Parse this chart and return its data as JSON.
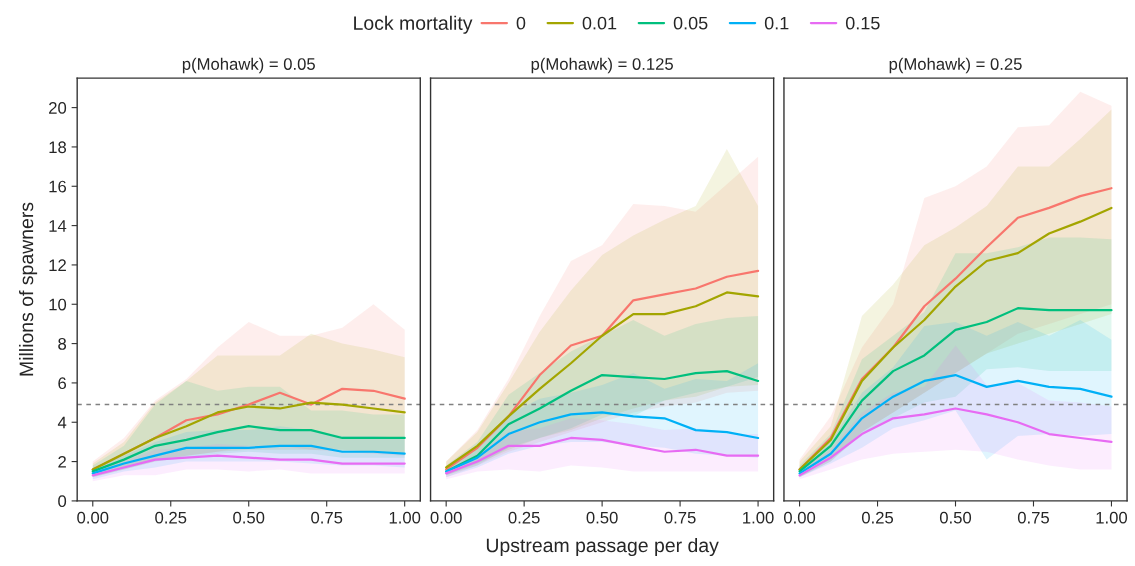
{
  "chart_data": [
    {
      "type": "line",
      "title": "p(Mohawk) = 0.05",
      "ylabel": "Millions of spawners",
      "legend_title": "Lock mortality",
      "legend": "top",
      "x": [
        0,
        0.1,
        0.2,
        0.3,
        0.4,
        0.5,
        0.6,
        0.7,
        0.8,
        0.9,
        1.0
      ],
      "xlim": [
        -0.05,
        1.05
      ],
      "xticks": [
        {
          "value": 0,
          "label": "0.00"
        },
        {
          "value": 0.25,
          "label": "0.25"
        },
        {
          "value": 0.5,
          "label": "0.50"
        },
        {
          "value": 0.75,
          "label": "0.75"
        },
        {
          "value": 1.0,
          "label": "1.00"
        }
      ],
      "ylim": [
        0,
        21.5
      ],
      "yticks": [
        0,
        2,
        4,
        6,
        8,
        10,
        12,
        14,
        16,
        18,
        20
      ],
      "grid": false,
      "ref_lines": [
        {
          "axis": "y",
          "value": 4.9,
          "color": "#808080",
          "line_style": "dashed"
        }
      ],
      "series": [
        {
          "name": "0",
          "color": "#F8766D",
          "values": [
            1.6,
            2.4,
            3.2,
            4.1,
            4.4,
            4.9,
            5.5,
            4.9,
            5.7,
            5.6,
            5.2
          ],
          "lower": [
            1.2,
            1.6,
            2.0,
            2.3,
            2.5,
            2.8,
            2.8,
            2.6,
            2.5,
            2.4,
            2.3
          ],
          "upper": [
            2.0,
            3.2,
            5.1,
            6.2,
            7.8,
            9.1,
            8.4,
            8.4,
            8.8,
            10.0,
            8.7
          ]
        },
        {
          "name": "0.01",
          "color": "#A3A500",
          "values": [
            1.6,
            2.4,
            3.2,
            3.8,
            4.5,
            4.8,
            4.7,
            5.0,
            4.9,
            4.7,
            4.5
          ],
          "lower": [
            1.3,
            1.7,
            2.1,
            2.3,
            2.5,
            2.6,
            2.6,
            2.6,
            2.6,
            2.5,
            2.4
          ],
          "upper": [
            1.9,
            3.0,
            5.0,
            6.1,
            7.4,
            7.4,
            7.4,
            8.5,
            8.0,
            7.7,
            7.3
          ]
        },
        {
          "name": "0.05",
          "color": "#00BF7D",
          "values": [
            1.5,
            2.1,
            2.8,
            3.1,
            3.5,
            3.8,
            3.6,
            3.6,
            3.2,
            3.2,
            3.2
          ],
          "lower": [
            1.2,
            1.6,
            2.0,
            2.2,
            2.4,
            2.5,
            2.4,
            2.4,
            2.2,
            2.2,
            2.2
          ],
          "upper": [
            1.8,
            2.8,
            4.9,
            6.1,
            5.6,
            5.8,
            5.8,
            4.6,
            4.6,
            4.4,
            4.4
          ]
        },
        {
          "name": "0.1",
          "color": "#00B0F6",
          "values": [
            1.4,
            1.9,
            2.3,
            2.7,
            2.7,
            2.7,
            2.8,
            2.8,
            2.5,
            2.5,
            2.4
          ],
          "lower": [
            1.1,
            1.5,
            1.7,
            2.0,
            2.0,
            2.0,
            2.0,
            1.9,
            1.8,
            1.8,
            1.7
          ],
          "upper": [
            1.7,
            2.3,
            3.0,
            3.5,
            3.6,
            3.6,
            3.8,
            3.6,
            3.3,
            3.3,
            3.2
          ]
        },
        {
          "name": "0.15",
          "color": "#E76BF3",
          "values": [
            1.3,
            1.7,
            2.1,
            2.2,
            2.3,
            2.2,
            2.1,
            2.1,
            1.9,
            1.9,
            1.9
          ],
          "lower": [
            1.0,
            1.3,
            1.3,
            1.6,
            1.6,
            1.5,
            1.6,
            1.4,
            1.4,
            1.4,
            1.4
          ],
          "upper": [
            1.5,
            2.0,
            2.6,
            2.7,
            2.9,
            2.8,
            2.8,
            2.7,
            2.5,
            2.5,
            2.4
          ]
        }
      ]
    },
    {
      "type": "line",
      "title": "p(Mohawk) = 0.125",
      "xlabel": "Upstream passage per day",
      "tick_labels": "x",
      "x": [
        0,
        0.1,
        0.2,
        0.3,
        0.4,
        0.5,
        0.6,
        0.7,
        0.8,
        0.9,
        1.0
      ],
      "xlim": [
        -0.05,
        1.05
      ],
      "xticks": [
        {
          "value": 0,
          "label": "0.00"
        },
        {
          "value": 0.25,
          "label": "0.25"
        },
        {
          "value": 0.5,
          "label": "0.50"
        },
        {
          "value": 0.75,
          "label": "0.75"
        },
        {
          "value": 1.0,
          "label": "1.00"
        }
      ],
      "ylim": [
        0,
        21.5
      ],
      "grid": false,
      "ref_lines": [
        {
          "axis": "y",
          "value": 4.9,
          "color": "#808080",
          "line_style": "dashed"
        }
      ],
      "series": [
        {
          "color": "#F8766D",
          "values": [
            1.6,
            2.7,
            4.3,
            6.4,
            7.9,
            8.4,
            10.2,
            10.5,
            10.8,
            11.4,
            11.7
          ],
          "lower": [
            1.2,
            1.8,
            2.5,
            3.0,
            3.5,
            4.0,
            4.5,
            4.8,
            5.0,
            5.5,
            5.6
          ],
          "upper": [
            2.0,
            3.6,
            6.2,
            9.4,
            12.2,
            13.0,
            15.1,
            15.0,
            14.7,
            16.1,
            17.5
          ]
        },
        {
          "color": "#A3A500",
          "values": [
            1.7,
            2.8,
            4.3,
            5.7,
            7.0,
            8.4,
            9.5,
            9.5,
            9.9,
            10.6,
            10.4
          ],
          "lower": [
            1.3,
            1.9,
            2.6,
            3.2,
            3.6,
            4.2,
            4.7,
            5.1,
            5.3,
            5.8,
            5.9
          ],
          "upper": [
            2.0,
            3.5,
            6.0,
            8.6,
            10.7,
            12.5,
            13.5,
            14.3,
            15.0,
            17.9,
            15.0
          ]
        },
        {
          "color": "#00BF7D",
          "values": [
            1.5,
            2.3,
            3.9,
            4.7,
            5.6,
            6.4,
            6.3,
            6.2,
            6.5,
            6.6,
            6.1
          ],
          "lower": [
            1.3,
            1.8,
            2.7,
            3.2,
            3.7,
            4.4,
            4.3,
            5.1,
            5.5,
            5.8,
            6.3
          ],
          "upper": [
            1.8,
            3.0,
            5.4,
            6.5,
            7.6,
            8.4,
            9.2,
            8.4,
            9.0,
            9.3,
            9.4
          ]
        },
        {
          "color": "#00B0F6",
          "values": [
            1.5,
            2.2,
            3.4,
            4.0,
            4.4,
            4.5,
            4.3,
            4.2,
            3.6,
            3.5,
            3.2
          ],
          "lower": [
            1.2,
            1.7,
            2.4,
            2.8,
            3.0,
            3.0,
            2.8,
            2.7,
            2.4,
            2.3,
            2.2
          ],
          "upper": [
            1.7,
            2.7,
            4.4,
            5.2,
            5.5,
            5.9,
            6.5,
            5.7,
            6.2,
            6.1,
            7.0
          ]
        },
        {
          "color": "#E76BF3",
          "values": [
            1.4,
            2.0,
            2.8,
            2.8,
            3.2,
            3.1,
            2.8,
            2.5,
            2.6,
            2.3,
            2.3
          ],
          "lower": [
            1.1,
            1.5,
            1.6,
            1.5,
            1.8,
            1.7,
            1.5,
            1.5,
            1.5,
            1.5,
            1.5
          ],
          "upper": [
            1.6,
            2.4,
            3.5,
            3.7,
            4.2,
            4.1,
            3.9,
            3.6,
            3.7,
            3.4,
            3.4
          ]
        }
      ]
    },
    {
      "type": "line",
      "title": "p(Mohawk) = 0.25",
      "tick_labels": "x",
      "x": [
        0,
        0.1,
        0.2,
        0.3,
        0.4,
        0.5,
        0.6,
        0.7,
        0.8,
        0.9,
        1.0
      ],
      "xlim": [
        -0.05,
        1.05
      ],
      "xticks": [
        {
          "value": 0,
          "label": "0.00"
        },
        {
          "value": 0.25,
          "label": "0.25"
        },
        {
          "value": 0.5,
          "label": "0.50"
        },
        {
          "value": 0.75,
          "label": "0.75"
        },
        {
          "value": 1.0,
          "label": "1.00"
        }
      ],
      "ylim": [
        0,
        21.5
      ],
      "grid": false,
      "ref_lines": [
        {
          "axis": "y",
          "value": 4.9,
          "color": "#808080",
          "line_style": "dashed"
        }
      ],
      "series": [
        {
          "color": "#F8766D",
          "values": [
            1.6,
            3.2,
            6.2,
            7.8,
            9.9,
            11.3,
            12.9,
            14.4,
            14.9,
            15.5,
            15.9
          ],
          "lower": [
            1.2,
            2.0,
            3.5,
            4.5,
            5.5,
            6.5,
            7.5,
            8.5,
            9.0,
            9.5,
            10.0
          ],
          "upper": [
            2.1,
            4.3,
            7.8,
            10.0,
            15.4,
            16.0,
            17.0,
            19.0,
            19.1,
            20.8,
            20.1
          ]
        },
        {
          "color": "#A3A500",
          "values": [
            1.6,
            3.1,
            6.1,
            7.8,
            9.2,
            10.9,
            12.2,
            12.6,
            13.6,
            14.2,
            14.9
          ],
          "lower": [
            1.3,
            2.1,
            3.5,
            4.5,
            5.5,
            6.5,
            7.5,
            8.0,
            8.5,
            9.0,
            9.5
          ],
          "upper": [
            2.0,
            3.8,
            9.4,
            11.0,
            13.0,
            13.9,
            15.0,
            17.0,
            17.0,
            18.4,
            19.9
          ]
        },
        {
          "color": "#00BF7D",
          "values": [
            1.5,
            2.8,
            5.1,
            6.6,
            7.4,
            8.7,
            9.1,
            9.8,
            9.7,
            9.7,
            9.7
          ],
          "lower": [
            1.2,
            2.0,
            3.4,
            4.2,
            5.0,
            5.3,
            6.7,
            6.8,
            6.6,
            6.6,
            6.6
          ],
          "upper": [
            1.8,
            3.4,
            7.2,
            8.4,
            9.6,
            12.6,
            12.6,
            12.9,
            13.4,
            13.4,
            13.3
          ]
        },
        {
          "color": "#00B0F6",
          "values": [
            1.4,
            2.4,
            4.2,
            5.3,
            6.1,
            6.4,
            5.8,
            6.1,
            5.8,
            5.7,
            5.3
          ],
          "lower": [
            1.2,
            1.9,
            2.7,
            3.7,
            4.1,
            4.6,
            2.1,
            3.3,
            3.4,
            3.3,
            3.4
          ],
          "upper": [
            1.7,
            3.0,
            5.5,
            6.8,
            8.9,
            9.1,
            8.4,
            9.1,
            8.4,
            9.2,
            8.2
          ]
        },
        {
          "color": "#E76BF3",
          "values": [
            1.3,
            2.2,
            3.4,
            4.2,
            4.4,
            4.7,
            4.4,
            4.0,
            3.4,
            3.2,
            3.0
          ],
          "lower": [
            1.1,
            1.6,
            2.1,
            2.4,
            2.5,
            2.6,
            2.5,
            2.1,
            1.8,
            1.6,
            1.6
          ],
          "upper": [
            1.5,
            2.6,
            4.5,
            5.5,
            5.8,
            7.9,
            5.9,
            6.0,
            5.1,
            5.0,
            4.8
          ]
        }
      ]
    }
  ]
}
